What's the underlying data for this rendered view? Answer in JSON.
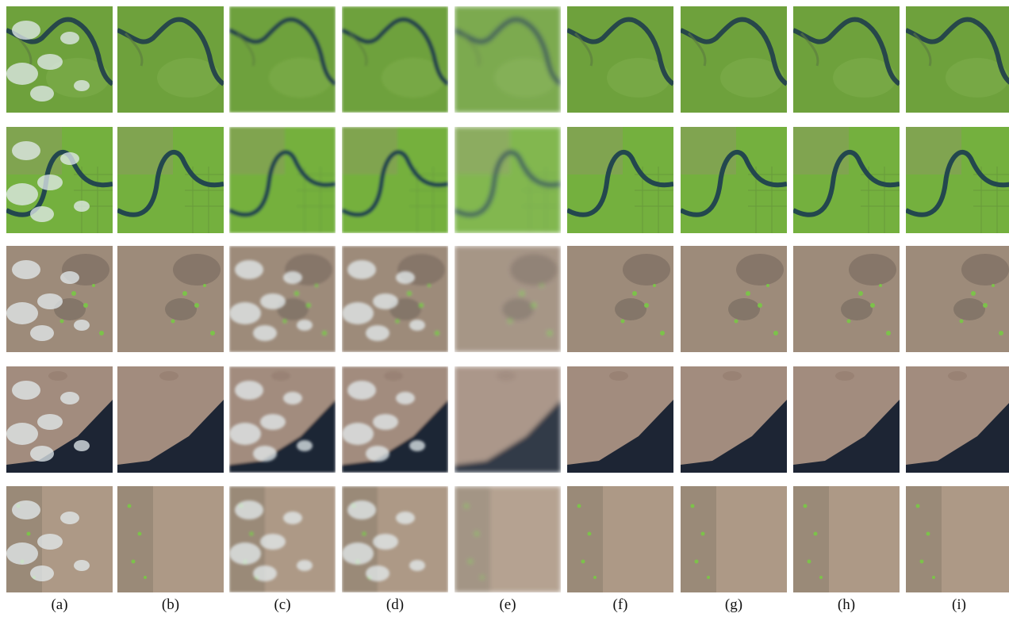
{
  "labels": [
    "(a)",
    "(b)",
    "(c)",
    "(d)",
    "(e)",
    "(f)",
    "(g)",
    "(h)",
    "(i)"
  ]
}
